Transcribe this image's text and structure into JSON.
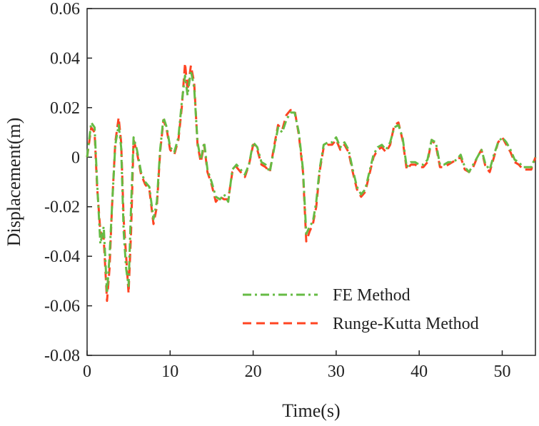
{
  "chart_data": {
    "type": "line",
    "title": "",
    "xlabel": "Time(s)",
    "ylabel": "Displacement(m)",
    "xlim": [
      0,
      54
    ],
    "ylim": [
      -0.08,
      0.06
    ],
    "xticks": [
      0,
      10,
      20,
      30,
      40,
      50
    ],
    "xtick_labels": [
      "0",
      "10",
      "20",
      "30",
      "40",
      "50"
    ],
    "yticks": [
      -0.08,
      -0.06,
      -0.04,
      -0.02,
      0,
      0.02,
      0.04,
      0.06
    ],
    "ytick_labels": [
      "-0.08",
      "-0.06",
      "-0.04",
      "-0.02",
      "0",
      "0.02",
      "0.04",
      "0.06"
    ],
    "grid": false,
    "legend_position": "bottom-right",
    "series": [
      {
        "name": "FE Method",
        "color": "#66bb44",
        "style": "dash-dot",
        "x": [
          0,
          0.5,
          0.9,
          1.2,
          1.6,
          2.0,
          2.4,
          2.7,
          3.0,
          3.4,
          3.8,
          4.1,
          4.4,
          4.7,
          5.0,
          5.3,
          5.6,
          6.0,
          6.5,
          7.0,
          7.5,
          8.0,
          8.4,
          8.8,
          9.2,
          9.6,
          10.0,
          10.5,
          11.0,
          11.4,
          11.8,
          12.1,
          12.5,
          12.9,
          13.3,
          13.7,
          14.1,
          14.5,
          15.0,
          15.5,
          16.0,
          16.5,
          17.0,
          17.5,
          18.0,
          18.5,
          19.0,
          19.5,
          20.0,
          20.5,
          21.0,
          21.5,
          22.0,
          22.5,
          23.0,
          23.5,
          24.0,
          24.5,
          25.0,
          25.5,
          26.0,
          26.4,
          26.8,
          27.2,
          27.6,
          28.0,
          28.5,
          29.0,
          29.5,
          30.0,
          30.5,
          31.0,
          31.5,
          32.0,
          32.5,
          33.0,
          33.5,
          34.0,
          34.5,
          35.0,
          35.5,
          36.0,
          36.5,
          37.0,
          37.5,
          38.0,
          38.5,
          39.0,
          39.5,
          40.0,
          40.5,
          41.0,
          41.5,
          42.0,
          42.5,
          43.0,
          43.5,
          44.0,
          44.5,
          45.0,
          45.5,
          46.0,
          46.5,
          47.0,
          47.5,
          48.0,
          48.5,
          49.0,
          49.5,
          50.0,
          50.5,
          51.0,
          51.5,
          52.0,
          52.5,
          53.0,
          53.5,
          54.0
        ],
        "y": [
          0,
          0.014,
          0.012,
          -0.01,
          -0.035,
          -0.028,
          -0.055,
          -0.04,
          -0.02,
          0.005,
          0.013,
          0.004,
          -0.03,
          -0.045,
          -0.052,
          -0.02,
          0.008,
          0.003,
          -0.006,
          -0.01,
          -0.012,
          -0.025,
          -0.018,
          0.003,
          0.016,
          0.012,
          0.004,
          0.002,
          0.008,
          0.022,
          0.033,
          0.025,
          0.035,
          0.028,
          0.006,
          -0.001,
          0.006,
          -0.005,
          -0.01,
          -0.016,
          -0.017,
          -0.015,
          -0.018,
          -0.005,
          -0.003,
          -0.005,
          -0.007,
          -0.003,
          0.006,
          0.004,
          -0.002,
          -0.003,
          -0.006,
          0.003,
          0.012,
          0.01,
          0.015,
          0.018,
          0.018,
          0.01,
          -0.005,
          -0.031,
          -0.028,
          -0.026,
          -0.018,
          -0.005,
          0.005,
          0.006,
          0.006,
          0.008,
          0.004,
          0.006,
          0.003,
          -0.005,
          -0.012,
          -0.015,
          -0.013,
          -0.006,
          0.001,
          0.004,
          0.005,
          0.003,
          0.006,
          0.012,
          0.013,
          0.008,
          -0.004,
          -0.002,
          -0.002,
          -0.003,
          -0.003,
          -0.001,
          0.007,
          0.006,
          -0.003,
          -0.003,
          -0.002,
          -0.002,
          -0.001,
          0.001,
          -0.004,
          -0.006,
          -0.003,
          0,
          0.003,
          -0.003,
          -0.005,
          0.001,
          0.006,
          0.008,
          0.006,
          0.003,
          -0.001,
          -0.002,
          -0.004,
          -0.004,
          -0.004,
          0
        ]
      },
      {
        "name": "Runge-Kutta Method",
        "color": "#ff4422",
        "style": "dashed",
        "x": [
          0,
          0.5,
          0.9,
          1.2,
          1.6,
          2.0,
          2.4,
          2.7,
          3.0,
          3.4,
          3.8,
          4.1,
          4.4,
          4.7,
          5.0,
          5.3,
          5.6,
          6.0,
          6.5,
          7.0,
          7.5,
          8.0,
          8.4,
          8.8,
          9.2,
          9.6,
          10.0,
          10.5,
          11.0,
          11.4,
          11.8,
          12.1,
          12.5,
          12.9,
          13.3,
          13.7,
          14.1,
          14.5,
          15.0,
          15.5,
          16.0,
          16.5,
          17.0,
          17.5,
          18.0,
          18.5,
          19.0,
          19.5,
          20.0,
          20.5,
          21.0,
          21.5,
          22.0,
          22.5,
          23.0,
          23.5,
          24.0,
          24.5,
          25.0,
          25.5,
          26.0,
          26.4,
          26.8,
          27.2,
          27.6,
          28.0,
          28.5,
          29.0,
          29.5,
          30.0,
          30.5,
          31.0,
          31.5,
          32.0,
          32.5,
          33.0,
          33.5,
          34.0,
          34.5,
          35.0,
          35.5,
          36.0,
          36.5,
          37.0,
          37.5,
          38.0,
          38.5,
          39.0,
          39.5,
          40.0,
          40.5,
          41.0,
          41.5,
          42.0,
          42.5,
          43.0,
          43.5,
          44.0,
          44.5,
          45.0,
          45.5,
          46.0,
          46.5,
          47.0,
          47.5,
          48.0,
          48.5,
          49.0,
          49.5,
          50.0,
          50.5,
          51.0,
          51.5,
          52.0,
          52.5,
          53.0,
          53.5,
          54.0
        ],
        "y": [
          0,
          0.012,
          0.01,
          -0.012,
          -0.03,
          -0.033,
          -0.058,
          -0.045,
          -0.02,
          0.006,
          0.016,
          0.006,
          -0.025,
          -0.04,
          -0.055,
          -0.03,
          0.007,
          0.002,
          -0.007,
          -0.011,
          -0.013,
          -0.027,
          -0.02,
          0.002,
          0.015,
          0.011,
          0.003,
          0.001,
          0.007,
          0.02,
          0.038,
          0.027,
          0.037,
          0.03,
          0.005,
          -0.002,
          0.005,
          -0.006,
          -0.011,
          -0.018,
          -0.016,
          -0.017,
          -0.017,
          -0.006,
          -0.004,
          -0.006,
          -0.008,
          -0.003,
          0.005,
          0.003,
          -0.003,
          -0.004,
          -0.006,
          0.004,
          0.013,
          0.011,
          0.017,
          0.019,
          0.019,
          0.009,
          -0.006,
          -0.034,
          -0.03,
          -0.027,
          -0.02,
          -0.006,
          0.004,
          0.005,
          0.005,
          0.007,
          0.003,
          0.005,
          0.002,
          -0.006,
          -0.013,
          -0.016,
          -0.014,
          -0.007,
          0,
          0.003,
          0.004,
          0.002,
          0.005,
          0.013,
          0.014,
          0.007,
          -0.005,
          -0.003,
          -0.003,
          -0.004,
          -0.004,
          -0.002,
          0.007,
          0.005,
          -0.004,
          -0.004,
          -0.003,
          -0.002,
          -0.001,
          0,
          -0.005,
          -0.006,
          -0.004,
          0,
          0.003,
          -0.004,
          -0.006,
          0,
          0.006,
          0.008,
          0.005,
          0.002,
          -0.002,
          -0.003,
          -0.005,
          -0.005,
          -0.005,
          0
        ]
      }
    ]
  }
}
